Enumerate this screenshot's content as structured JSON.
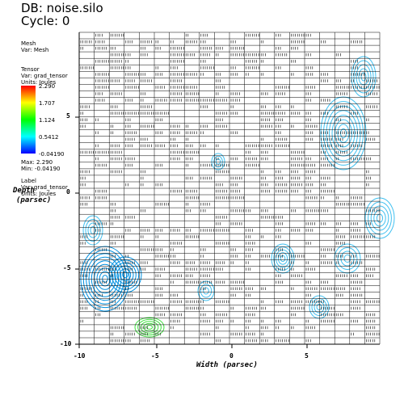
{
  "header": {
    "db_title": "DB: noise.silo",
    "cycle": "Cycle: 0"
  },
  "legend_mesh": {
    "line1": "Mesh",
    "line2": "Var: Mesh"
  },
  "legend_tensor": {
    "line1": "Tensor",
    "line2": "Var: grad_tensor",
    "line3": "Units: Joules",
    "ticks": [
      "2.290",
      "1.707",
      "1.124",
      "0.5412",
      "-0.04190"
    ],
    "max": "Max: 2.290",
    "min": "Min: -0.04190"
  },
  "legend_label": {
    "line1": "Label",
    "line2": "Var: grad_tensor",
    "line3": "Units: Joules"
  },
  "axes": {
    "xlabel": "Width (parsec)",
    "ylabel_line1": "Depth",
    "ylabel_line2": "(parsec)",
    "xticks": [
      "-10",
      "-5",
      "0",
      "5"
    ],
    "yticks": [
      "5",
      "0",
      "-5",
      "-10"
    ]
  },
  "colors": {
    "contour_light": "#40c0f0",
    "contour_deep": "#0090e0",
    "contour_green": "#40e040",
    "mesh": "#000000"
  }
}
